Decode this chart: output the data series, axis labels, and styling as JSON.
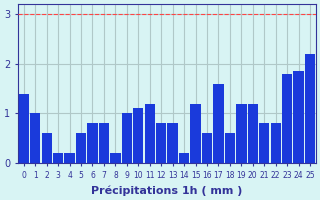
{
  "values": [
    1.4,
    1.0,
    0.6,
    0.2,
    0.2,
    0.6,
    0.8,
    0.8,
    0.2,
    1.0,
    1.1,
    1.2,
    0.8,
    0.8,
    0.2,
    1.2,
    0.6,
    1.6,
    0.6,
    1.2,
    1.2,
    0.8,
    0.8,
    1.8,
    1.85,
    2.2
  ],
  "bar_color": "#1a3adb",
  "background_color": "#d8f4f4",
  "grid_color": "#b0c8c8",
  "axis_color": "#333399",
  "xlabel": "Précipitations 1h ( mm )",
  "ylim": [
    0,
    3.2
  ],
  "yticks": [
    0,
    1,
    2,
    3
  ],
  "xlabel_fontsize": 8,
  "tick_fontsize": 7,
  "red_line_color": "#ff4444"
}
